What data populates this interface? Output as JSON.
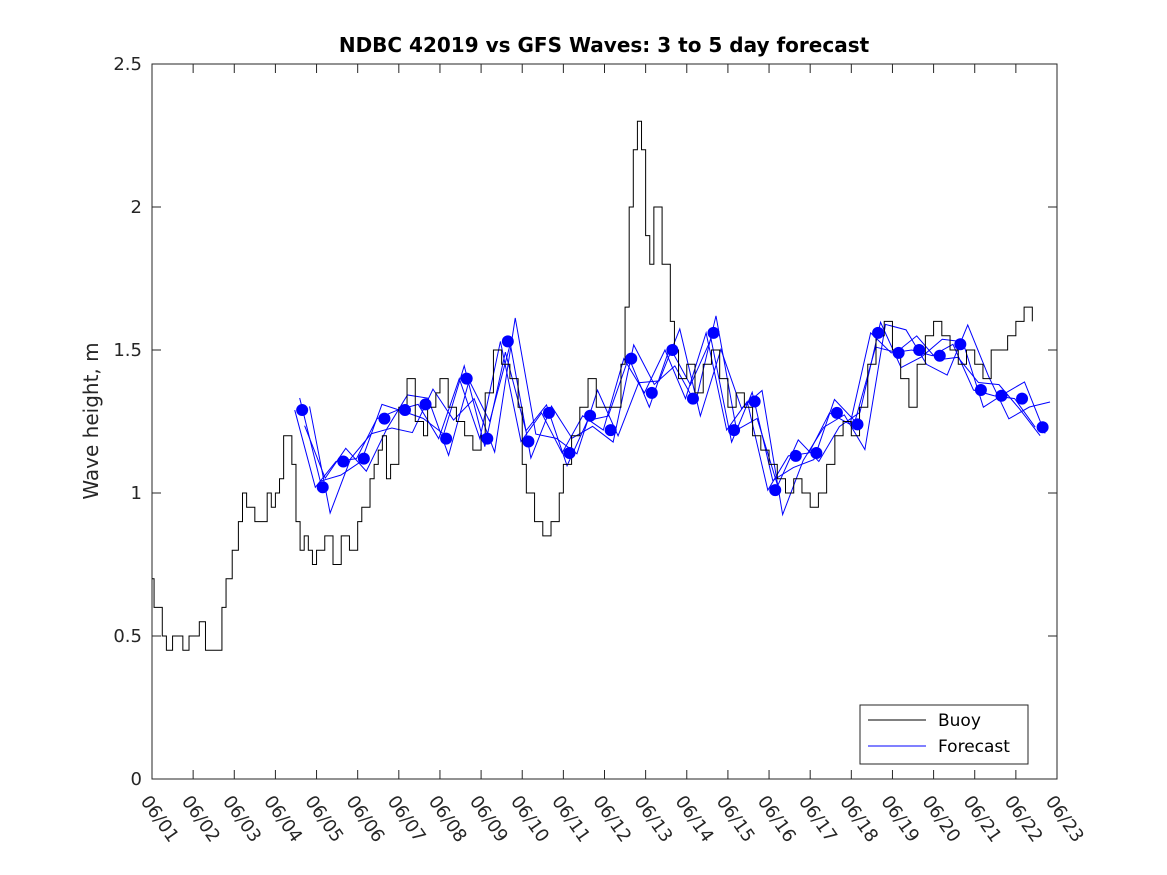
{
  "chart_data": {
    "type": "line",
    "title": "NDBC 42019 vs GFS Waves: 3 to 5 day forecast",
    "xlabel": "",
    "ylabel": "Wave height, m",
    "ylim": [
      0,
      2.5
    ],
    "yticks": [
      0,
      0.5,
      1,
      1.5,
      2,
      2.5
    ],
    "ytick_labels": [
      "0",
      "0.5",
      "1",
      "1.5",
      "2",
      "2.5"
    ],
    "xlim": [
      1,
      23
    ],
    "xticks": [
      1,
      2,
      3,
      4,
      5,
      6,
      7,
      8,
      9,
      10,
      11,
      12,
      13,
      14,
      15,
      16,
      17,
      18,
      19,
      20,
      21,
      22,
      23
    ],
    "xtick_labels": [
      "06/01",
      "06/02",
      "06/03",
      "06/04",
      "06/05",
      "06/06",
      "06/07",
      "06/08",
      "06/09",
      "06/10",
      "06/11",
      "06/12",
      "06/13",
      "06/14",
      "06/15",
      "06/16",
      "06/17",
      "06/18",
      "06/19",
      "06/20",
      "06/21",
      "06/22",
      "06/23"
    ],
    "grid": false,
    "legend": {
      "position": "bottom-right",
      "entries": [
        "Buoy",
        "Forecast"
      ]
    },
    "colors": {
      "buoy": "#000000",
      "forecast": "#0000ff"
    },
    "series": [
      {
        "name": "Buoy",
        "x": [
          1.0,
          1.05,
          1.25,
          1.35,
          1.5,
          1.75,
          1.9,
          2.0,
          2.15,
          2.3,
          2.5,
          2.7,
          2.8,
          2.95,
          3.1,
          3.2,
          3.3,
          3.5,
          3.65,
          3.8,
          3.9,
          4.0,
          4.1,
          4.2,
          4.4,
          4.5,
          4.6,
          4.7,
          4.8,
          4.9,
          5.0,
          5.2,
          5.4,
          5.6,
          5.8,
          6.0,
          6.1,
          6.3,
          6.4,
          6.5,
          6.6,
          6.7,
          6.8,
          7.0,
          7.2,
          7.4,
          7.6,
          7.7,
          7.9,
          8.0,
          8.2,
          8.4,
          8.6,
          8.8,
          9.0,
          9.1,
          9.3,
          9.5,
          9.7,
          9.9,
          10.0,
          10.1,
          10.3,
          10.5,
          10.7,
          10.9,
          11.0,
          11.2,
          11.4,
          11.6,
          11.8,
          12.0,
          12.2,
          12.4,
          12.5,
          12.6,
          12.7,
          12.8,
          12.9,
          13.0,
          13.1,
          13.2,
          13.4,
          13.6,
          13.7,
          13.8,
          14.0,
          14.2,
          14.4,
          14.6,
          14.8,
          15.0,
          15.2,
          15.4,
          15.6,
          15.8,
          16.0,
          16.2,
          16.4,
          16.6,
          16.8,
          17.0,
          17.2,
          17.4,
          17.6,
          17.8,
          18.0,
          18.2,
          18.4,
          18.6,
          18.8,
          19.0,
          19.2,
          19.4,
          19.6,
          19.8,
          20.0,
          20.2,
          20.4,
          20.6,
          20.8,
          21.0,
          21.2,
          21.4,
          21.6,
          21.8,
          22.0,
          22.2,
          22.4
        ],
        "values": [
          0.7,
          0.6,
          0.5,
          0.45,
          0.5,
          0.45,
          0.5,
          0.5,
          0.55,
          0.45,
          0.45,
          0.6,
          0.7,
          0.8,
          0.9,
          1.0,
          0.95,
          0.9,
          0.9,
          1.0,
          0.95,
          1.0,
          1.05,
          1.2,
          1.1,
          0.9,
          0.8,
          0.85,
          0.8,
          0.75,
          0.8,
          0.85,
          0.75,
          0.85,
          0.8,
          0.9,
          0.95,
          1.05,
          1.1,
          1.15,
          1.2,
          1.05,
          1.1,
          1.3,
          1.4,
          1.25,
          1.2,
          1.3,
          1.35,
          1.4,
          1.3,
          1.25,
          1.2,
          1.15,
          1.2,
          1.35,
          1.5,
          1.45,
          1.4,
          1.3,
          1.1,
          1.0,
          0.9,
          0.85,
          0.9,
          1.0,
          1.1,
          1.2,
          1.3,
          1.4,
          1.3,
          1.3,
          1.3,
          1.45,
          1.65,
          2.0,
          2.2,
          2.3,
          2.2,
          1.9,
          1.8,
          2.0,
          1.8,
          1.6,
          1.5,
          1.4,
          1.45,
          1.35,
          1.45,
          1.5,
          1.4,
          1.3,
          1.35,
          1.3,
          1.2,
          1.15,
          1.1,
          1.05,
          1.0,
          1.05,
          1.0,
          0.95,
          1.0,
          1.1,
          1.2,
          1.25,
          1.2,
          1.3,
          1.45,
          1.55,
          1.6,
          1.5,
          1.4,
          1.3,
          1.45,
          1.55,
          1.6,
          1.55,
          1.5,
          1.45,
          1.5,
          1.45,
          1.4,
          1.5,
          1.5,
          1.55,
          1.6,
          1.65,
          1.6
        ]
      },
      {
        "name": "Forecast",
        "marker_x": [
          4.65,
          5.15,
          5.65,
          6.15,
          6.65,
          7.15,
          7.65,
          8.15,
          8.65,
          9.15,
          9.65,
          10.15,
          10.65,
          11.15,
          11.65,
          12.15,
          12.65,
          13.15,
          13.65,
          14.15,
          14.65,
          15.15,
          15.65,
          16.15,
          16.65,
          17.15,
          17.65,
          18.15,
          18.65,
          19.15,
          19.65,
          20.15,
          20.65,
          21.15,
          21.65,
          22.15,
          22.65
        ],
        "marker_values": [
          1.29,
          1.02,
          1.11,
          1.12,
          1.26,
          1.29,
          1.31,
          1.19,
          1.4,
          1.19,
          1.53,
          1.18,
          1.28,
          1.14,
          1.27,
          1.22,
          1.47,
          1.35,
          1.5,
          1.33,
          1.56,
          1.22,
          1.32,
          1.01,
          1.13,
          1.14,
          1.28,
          1.24,
          1.56,
          1.49,
          1.5,
          1.48,
          1.52,
          1.36,
          1.34,
          1.33,
          1.23
        ],
        "values": [
          1.29,
          1.02,
          1.11,
          1.12,
          1.26,
          1.29,
          1.31,
          1.19,
          1.4,
          1.19,
          1.53,
          1.18,
          1.28,
          1.14,
          1.27,
          1.22,
          1.47,
          1.35,
          1.5,
          1.33,
          1.56,
          1.22,
          1.32,
          1.01,
          1.13,
          1.14,
          1.28,
          1.24,
          1.56,
          1.49,
          1.5,
          1.48,
          1.52,
          1.36,
          1.34,
          1.33,
          1.23
        ]
      }
    ]
  }
}
